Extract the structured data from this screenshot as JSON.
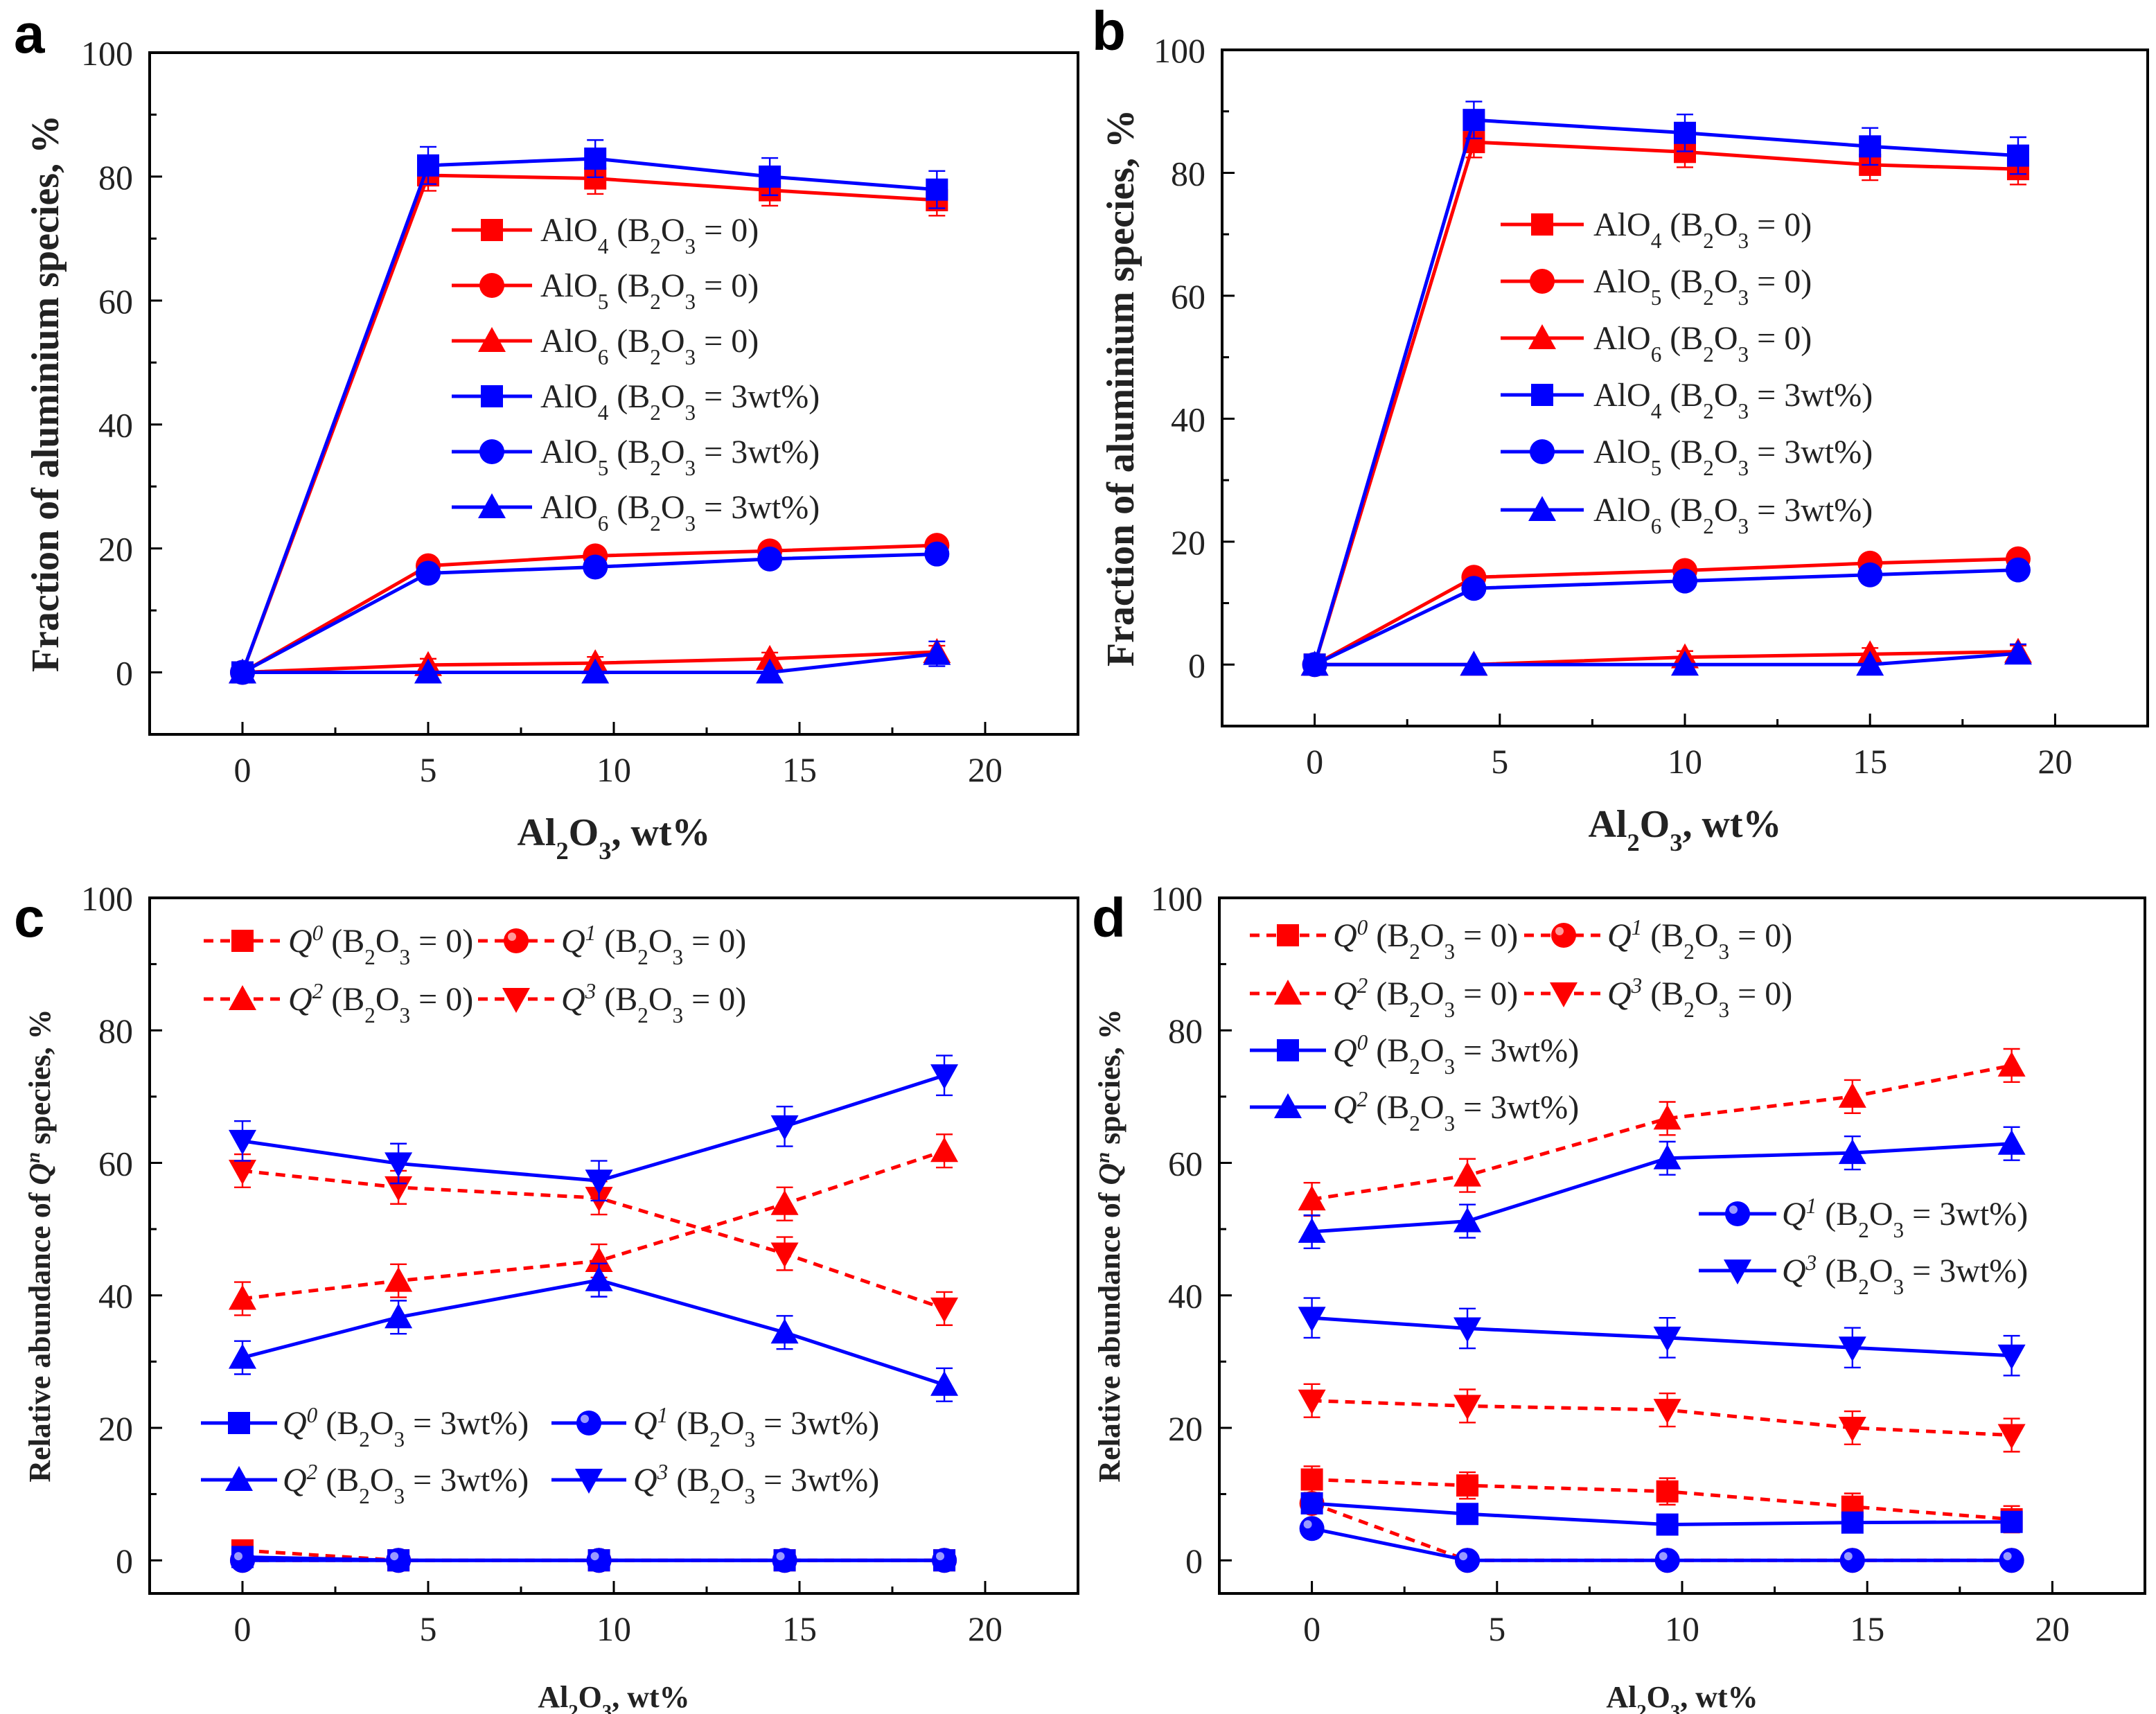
{
  "colors": {
    "b0": "#ff0000",
    "b3": "#0000ff",
    "axis": "#000000"
  },
  "chart_data": [
    {
      "panel": "a",
      "type": "line",
      "xlabel": "Al2O3, wt%",
      "ylabel": "Fraction of aluminium species, %",
      "xlim": [
        -2.5,
        22.5
      ],
      "ylim": [
        -10,
        100
      ],
      "xticks": [
        0,
        5,
        10,
        15,
        20
      ],
      "yticks": [
        0,
        20,
        40,
        60,
        80,
        100
      ],
      "x": [
        0,
        5,
        9.5,
        14.2,
        18.7
      ],
      "series": [
        {
          "name": "AlO4 (B2O3 = 0)",
          "group": "b0",
          "marker": "square",
          "dash": false,
          "values": [
            0,
            80.2,
            79.7,
            77.8,
            76.2
          ],
          "err": 2.5
        },
        {
          "name": "AlO5 (B2O3 = 0)",
          "group": "b0",
          "marker": "circle",
          "dash": false,
          "values": [
            0,
            17.2,
            18.8,
            19.6,
            20.5
          ],
          "err": 1
        },
        {
          "name": "AlO6 (B2O3 = 0)",
          "group": "b0",
          "marker": "triangle",
          "dash": false,
          "values": [
            0,
            1.2,
            1.5,
            2.2,
            3.3
          ],
          "err": 1
        },
        {
          "name": "AlO4 (B2O3 = 3wt%)",
          "group": "b3",
          "marker": "square",
          "dash": false,
          "values": [
            0,
            81.8,
            82.9,
            80,
            77.9
          ],
          "err": 3
        },
        {
          "name": "AlO5 (B2O3 = 3wt%)",
          "group": "b3",
          "marker": "circle",
          "dash": false,
          "values": [
            0,
            16,
            17,
            18.3,
            19.1
          ],
          "err": 1
        },
        {
          "name": "AlO6 (B2O3 = 3wt%)",
          "group": "b3",
          "marker": "triangle",
          "dash": false,
          "values": [
            0,
            0,
            0,
            0,
            3
          ],
          "err": 2
        }
      ]
    },
    {
      "panel": "b",
      "type": "line",
      "xlabel": "Al2O3, wt%",
      "ylabel": "Fraction of aluminium species, %",
      "xlim": [
        -2.5,
        22.5
      ],
      "ylim": [
        -10,
        100
      ],
      "xticks": [
        0,
        5,
        10,
        15,
        20
      ],
      "yticks": [
        0,
        20,
        40,
        60,
        80,
        100
      ],
      "x": [
        0,
        4.3,
        10,
        15,
        19
      ],
      "series": [
        {
          "name": "AlO4 (B2O3 = 0)",
          "group": "b0",
          "marker": "square",
          "dash": false,
          "values": [
            0,
            85,
            83.4,
            81.3,
            80.6
          ],
          "err": 2.5
        },
        {
          "name": "AlO5 (B2O3 = 0)",
          "group": "b0",
          "marker": "circle",
          "dash": false,
          "values": [
            0,
            14.2,
            15.3,
            16.5,
            17.2
          ],
          "err": 1
        },
        {
          "name": "AlO6 (B2O3 = 0)",
          "group": "b0",
          "marker": "triangle",
          "dash": false,
          "values": [
            0,
            0,
            1.2,
            1.7,
            2.1
          ],
          "err": 1
        },
        {
          "name": "AlO4 (B2O3 = 3wt%)",
          "group": "b3",
          "marker": "square",
          "dash": false,
          "values": [
            0,
            88.6,
            86.5,
            84.3,
            82.8
          ],
          "err": 3
        },
        {
          "name": "AlO5 (B2O3 = 3wt%)",
          "group": "b3",
          "marker": "circle",
          "dash": false,
          "values": [
            0,
            12.4,
            13.6,
            14.6,
            15.4
          ],
          "err": 1
        },
        {
          "name": "AlO6 (B2O3 = 3wt%)",
          "group": "b3",
          "marker": "triangle",
          "dash": false,
          "values": [
            0,
            0,
            0,
            0,
            1.8
          ],
          "err": 1.5
        }
      ]
    },
    {
      "panel": "c",
      "type": "line",
      "xlabel": "Al2O3, wt%",
      "ylabel": "Relative abundance of Qn species, %",
      "xlim": [
        -2.5,
        22.5
      ],
      "ylim": [
        -5,
        100
      ],
      "xticks": [
        0,
        5,
        10,
        15,
        20
      ],
      "yticks": [
        0,
        20,
        40,
        60,
        80,
        100
      ],
      "x": [
        0,
        4.2,
        9.6,
        14.6,
        18.9
      ],
      "series": [
        {
          "name": "Q0 (B2O3 = 0)",
          "group": "b0",
          "marker": "square",
          "dash": true,
          "values": [
            1.5,
            0,
            0,
            0,
            0
          ],
          "err": 1
        },
        {
          "name": "Q1 (B2O3 = 0)",
          "group": "b0",
          "marker": "ball",
          "dash": true,
          "values": [
            0,
            0,
            0,
            0,
            0
          ],
          "err": 0.5
        },
        {
          "name": "Q2 (B2O3 = 0)",
          "group": "b0",
          "marker": "triangle",
          "dash": true,
          "values": [
            39.5,
            42.2,
            45.2,
            53.8,
            61.8
          ],
          "err": 2.5
        },
        {
          "name": "Q3 (B2O3 = 0)",
          "group": "b0",
          "marker": "triangle-down",
          "dash": true,
          "values": [
            58.8,
            56.3,
            54.7,
            46.3,
            38
          ],
          "err": 2.5
        },
        {
          "name": "Q0 (B2O3 = 3wt%)",
          "group": "b3",
          "marker": "square",
          "dash": false,
          "values": [
            0.5,
            0,
            0,
            0,
            0
          ],
          "err": 0.5
        },
        {
          "name": "Q1 (B2O3 = 3wt%)",
          "group": "b3",
          "marker": "ball",
          "dash": false,
          "values": [
            0,
            0,
            0,
            0,
            0
          ],
          "err": 0.5
        },
        {
          "name": "Q2 (B2O3 = 3wt%)",
          "group": "b3",
          "marker": "triangle",
          "dash": false,
          "values": [
            30.6,
            36.7,
            42.3,
            34.4,
            26.5
          ],
          "err": 2.5
        },
        {
          "name": "Q3 (B2O3 = 3wt%)",
          "group": "b3",
          "marker": "triangle-down",
          "dash": false,
          "values": [
            63.3,
            59.9,
            57.3,
            65.5,
            73.2
          ],
          "err": 3
        }
      ]
    },
    {
      "panel": "d",
      "type": "line",
      "xlabel": "Al2O3, wt%",
      "ylabel": "Relative abundance of Qn species, %",
      "xlim": [
        -2.5,
        22.5
      ],
      "ylim": [
        -5,
        100
      ],
      "xticks": [
        0,
        5,
        10,
        15,
        20
      ],
      "yticks": [
        0,
        20,
        40,
        60,
        80,
        100
      ],
      "x": [
        0,
        4.2,
        9.6,
        14.6,
        18.9
      ],
      "series": [
        {
          "name": "Q0 (B2O3 = 0)",
          "group": "b0",
          "marker": "square",
          "dash": true,
          "values": [
            12.2,
            11.3,
            10.4,
            8.1,
            6.2
          ],
          "err": 2
        },
        {
          "name": "Q1 (B2O3 = 0)",
          "group": "b0",
          "marker": "ball",
          "dash": true,
          "values": [
            8.6,
            0,
            0,
            0,
            0
          ],
          "err": 1
        },
        {
          "name": "Q2 (B2O3 = 0)",
          "group": "b0",
          "marker": "triangle",
          "dash": true,
          "values": [
            54.5,
            58.1,
            66.7,
            70,
            74.7
          ],
          "err": 2.5
        },
        {
          "name": "Q3 (B2O3 = 0)",
          "group": "b0",
          "marker": "triangle-down",
          "dash": true,
          "values": [
            24.1,
            23.3,
            22.7,
            20,
            18.9
          ],
          "err": 2.5
        },
        {
          "name": "Q0 (B2O3 = 3wt%)",
          "group": "b3",
          "marker": "square",
          "dash": false,
          "values": [
            8.6,
            7,
            5.4,
            5.7,
            5.8
          ],
          "err": 1.5
        },
        {
          "name": "Q1 (B2O3 = 3wt%)",
          "group": "b3",
          "marker": "ball",
          "dash": false,
          "values": [
            4.8,
            0,
            0,
            0,
            0
          ],
          "err": 0.5
        },
        {
          "name": "Q2 (B2O3 = 3wt%)",
          "group": "b3",
          "marker": "triangle",
          "dash": false,
          "values": [
            49.6,
            51.2,
            60.7,
            61.5,
            62.9
          ],
          "err": 2.5
        },
        {
          "name": "Q3 (B2O3 = 3wt%)",
          "group": "b3",
          "marker": "triangle-down",
          "dash": false,
          "values": [
            36.6,
            35,
            33.6,
            32.1,
            30.9
          ],
          "err": 3
        }
      ]
    }
  ]
}
